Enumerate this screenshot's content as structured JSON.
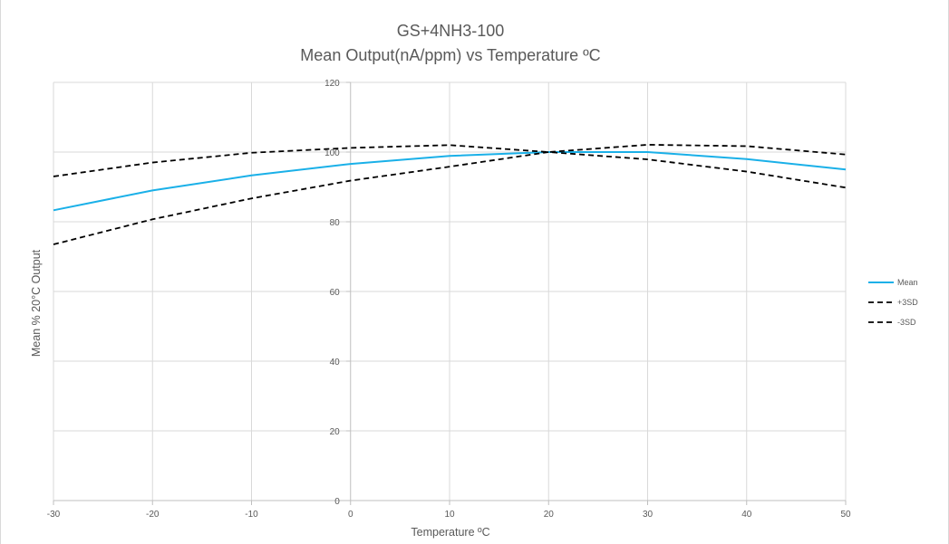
{
  "chart_data": {
    "type": "line",
    "title": "GS+4NH3-100",
    "subtitle": "Mean Output(nA/ppm) vs Temperature ºC",
    "xlabel": "Temperature ºC",
    "ylabel": "Mean % 20°C Output",
    "x": [
      -30,
      -20,
      -10,
      0,
      10,
      20,
      30,
      40,
      50
    ],
    "x_ticks": [
      "-30",
      "-20",
      "-10",
      "0",
      "10",
      "20",
      "30",
      "40",
      "50"
    ],
    "y_ticks": [
      "0",
      "20",
      "40",
      "60",
      "80",
      "100",
      "120"
    ],
    "xlim": [
      -30,
      50
    ],
    "ylim": [
      0,
      120
    ],
    "grid": true,
    "legend_position": "right",
    "series": [
      {
        "name": "Mean",
        "values": [
          83.3,
          89,
          93.3,
          96.6,
          98.9,
          100,
          100,
          98,
          95
        ],
        "color": "#1ab0e8",
        "dash": "solid"
      },
      {
        "name": "+3SD",
        "values": [
          93,
          97,
          99.8,
          101.2,
          102,
          100,
          102.1,
          101.7,
          99.3
        ],
        "color": "#000000",
        "dash": "dashed"
      },
      {
        "name": "-3SD",
        "values": [
          73.5,
          80.7,
          86.7,
          91.8,
          95.8,
          100,
          97.9,
          94.4,
          89.8
        ],
        "color": "#000000",
        "dash": "dashed"
      }
    ]
  }
}
